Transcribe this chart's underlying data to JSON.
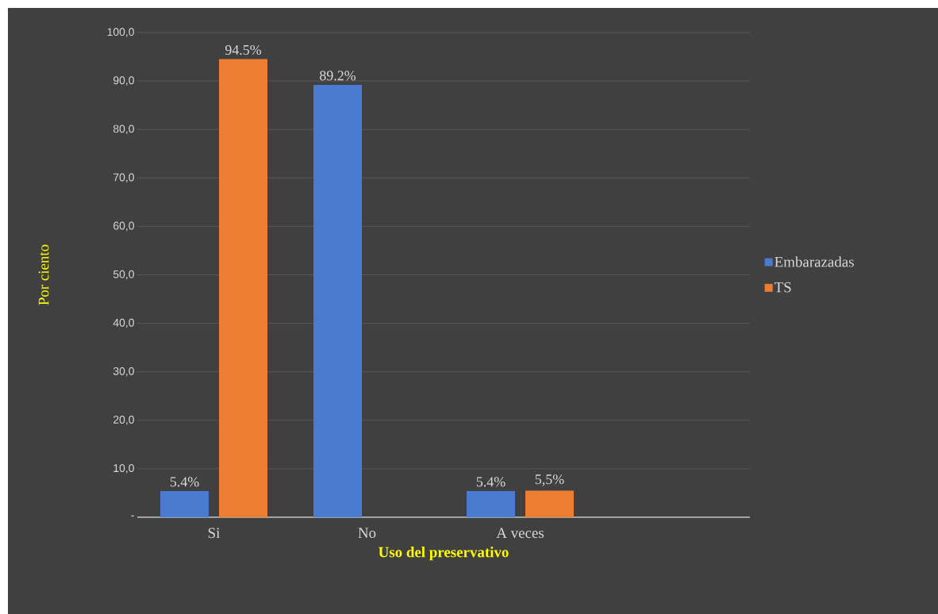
{
  "chart_data": {
    "type": "bar",
    "xlabel": "Uso del preservativo",
    "ylabel": "Por ciento",
    "categories": [
      "Si",
      "No",
      "A veces",
      null
    ],
    "series": [
      {
        "name": "Embarazadas",
        "color": "#4a7bd0",
        "values": [
          5.4,
          89.2,
          5.4,
          null
        ],
        "value_labels": [
          "5.4%",
          "89.2%",
          "5.4%",
          null
        ]
      },
      {
        "name": "TS",
        "color": "#ed7d31",
        "values": [
          94.5,
          null,
          5.5,
          null
        ],
        "value_labels": [
          "94.5%",
          null,
          "5,5%",
          null
        ]
      }
    ],
    "ylim": [
      0,
      100
    ],
    "yticks": [
      {
        "value": 0,
        "label": "-"
      },
      {
        "value": 10,
        "label": "10,0"
      },
      {
        "value": 20,
        "label": "20,0"
      },
      {
        "value": 30,
        "label": "30,0"
      },
      {
        "value": 40,
        "label": "40,0"
      },
      {
        "value": 50,
        "label": "50,0"
      },
      {
        "value": 60,
        "label": "60,0"
      },
      {
        "value": 70,
        "label": "70,0"
      },
      {
        "value": 80,
        "label": "80,0"
      },
      {
        "value": 90,
        "label": "90,0"
      },
      {
        "value": 100,
        "label": "100,0"
      }
    ],
    "grid": "y",
    "legend": "right"
  }
}
